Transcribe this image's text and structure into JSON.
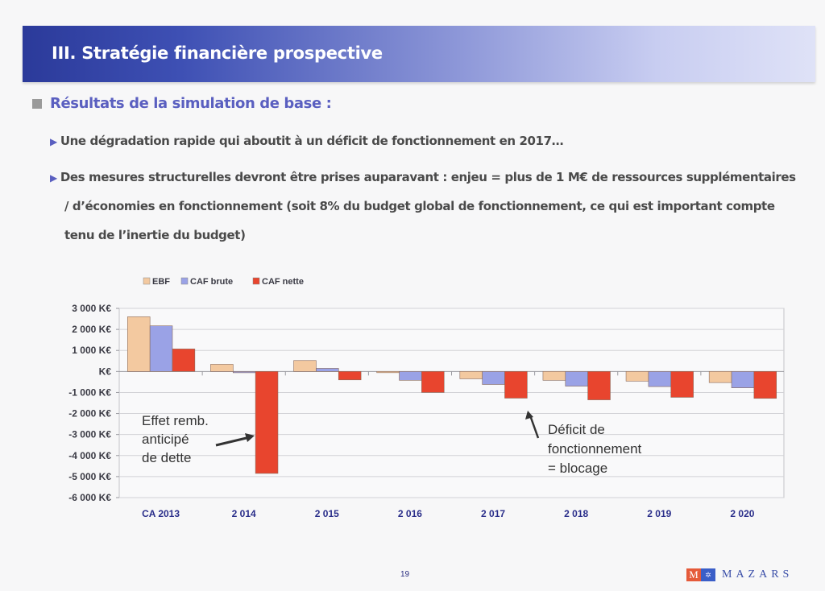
{
  "slide": {
    "title": "III. Stratégie financière prospective",
    "section_title": "Résultats de la simulation de base :",
    "bullets": [
      "Une dégradation rapide qui aboutit à un déficit de fonctionnement en 2017…",
      "Des mesures structurelles devront être prises auparavant : enjeu = plus de 1 M€ de ressources supplémentaires"
    ],
    "bullet2_cont": [
      "/ d’économies en fonctionnement (soit 8% du budget global de fonctionnement, ce qui est important compte",
      "tenu de l’inertie du budget)"
    ],
    "bullet_icon": "triangle-right-icon",
    "page_number": "19",
    "logo": {
      "mark": "M",
      "text": "MAZARS"
    }
  },
  "colors": {
    "ebf": "#f3c9a0",
    "caf_brute": "#9aa2e6",
    "caf_nette": "#e8452e",
    "accent": "#5a5fc0"
  },
  "chart_data": {
    "type": "bar",
    "title": "",
    "xlabel": "",
    "ylabel": "",
    "categories": [
      "CA 2013",
      "2 014",
      "2 015",
      "2 016",
      "2 017",
      "2 018",
      "2 019",
      "2 020"
    ],
    "series": [
      {
        "name": "EBF",
        "color": "#f3c9a0",
        "values": [
          2600,
          340,
          520,
          -20,
          -350,
          -420,
          -460,
          -530
        ]
      },
      {
        "name": "CAF brute",
        "color": "#9aa2e6",
        "values": [
          2170,
          -60,
          150,
          -420,
          -620,
          -700,
          -720,
          -780
        ]
      },
      {
        "name": "CAF nette",
        "color": "#e8452e",
        "values": [
          1070,
          -4850,
          -400,
          -1000,
          -1270,
          -1350,
          -1230,
          -1280
        ]
      }
    ],
    "ylim": [
      -6000,
      3000
    ],
    "yticks": [
      3000,
      2000,
      1000,
      0,
      -1000,
      -2000,
      -3000,
      -4000,
      -5000,
      -6000
    ],
    "ytick_labels": [
      "3 000 K€",
      "2 000 K€",
      "1 000 K€",
      "K€",
      "-1 000 K€",
      "-2 000 K€",
      "-3 000 K€",
      "-4 000 K€",
      "-5 000 K€",
      "-6 000 K€"
    ],
    "grid": true,
    "legend_position": "top-left",
    "annotations": [
      {
        "lines": [
          "Effet remb.",
          "anticipé",
          "de dette"
        ],
        "points_to": "2 014 / CAF nette"
      },
      {
        "lines": [
          "Déficit de",
          "fonctionnement",
          "= blocage"
        ],
        "points_to": "2 017 / CAF nette"
      }
    ]
  }
}
